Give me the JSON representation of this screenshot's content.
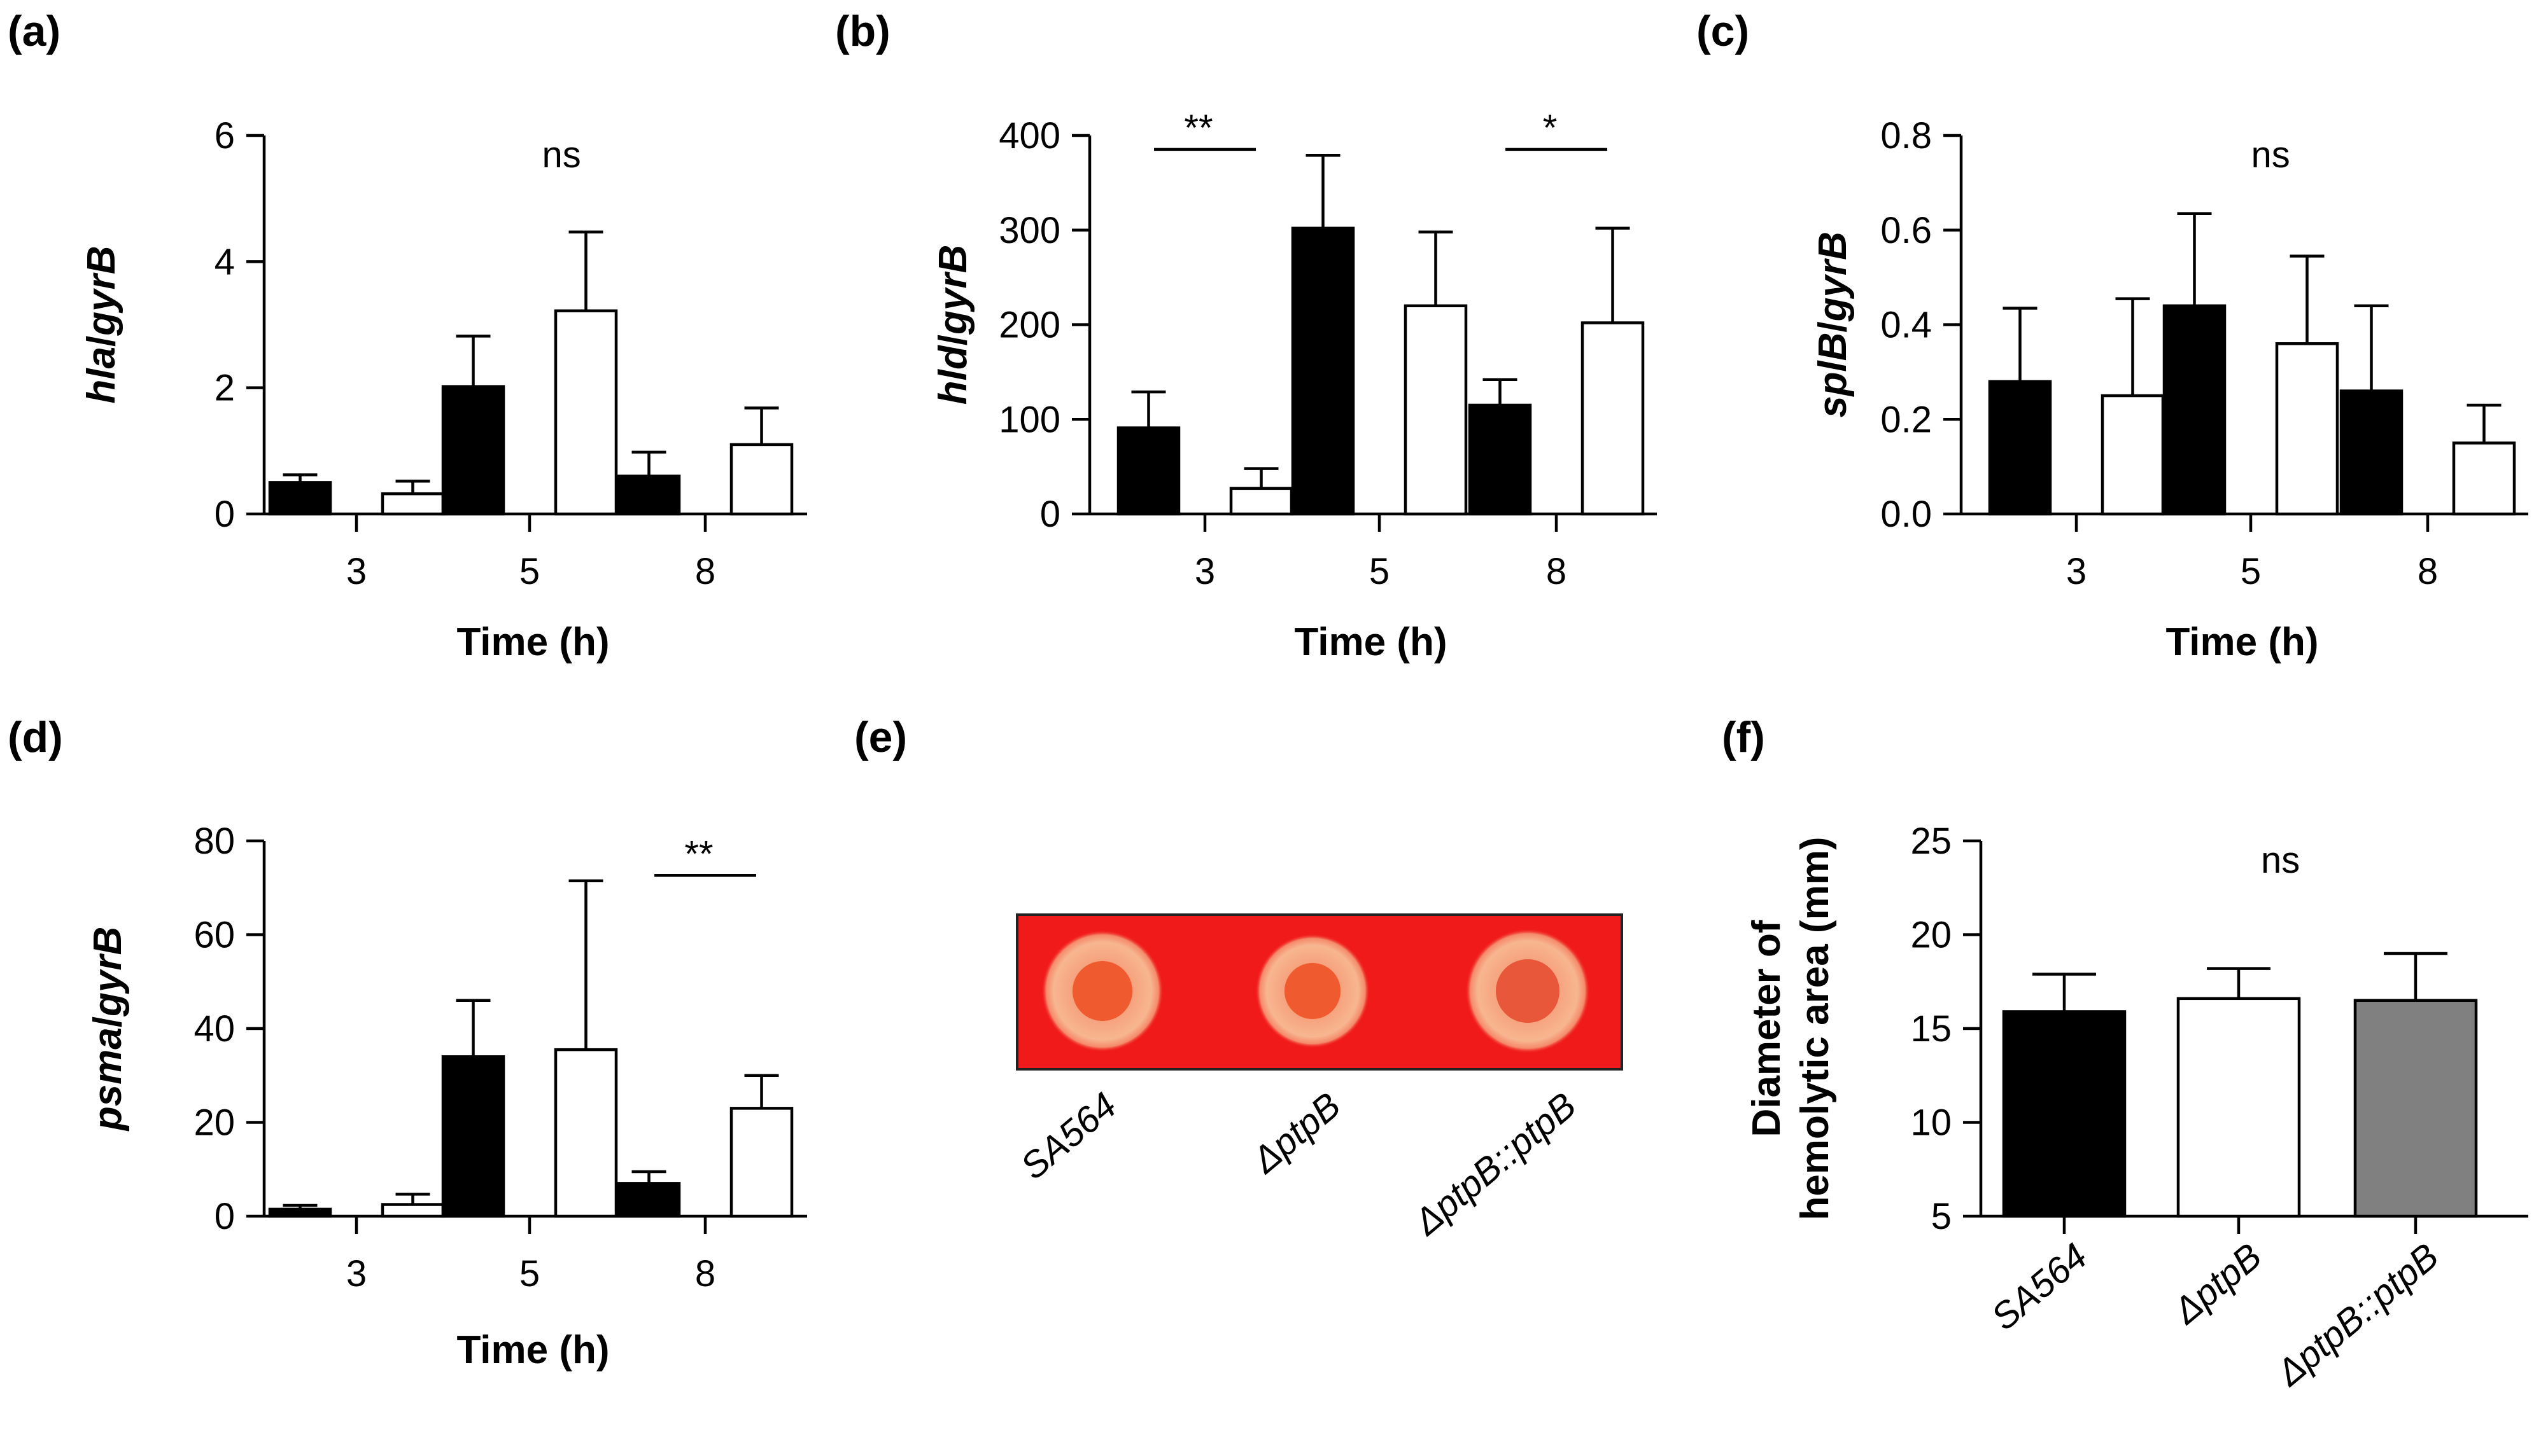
{
  "panel_labels": [
    "(a)",
    "(b)",
    "(c)",
    "(d)",
    "(e)",
    "(f)"
  ],
  "plate": {
    "labels": [
      "SA564",
      "ΔptpB",
      "ΔptpB::ptpB"
    ],
    "background_color": "#f01a1a",
    "halo_color": "#f7b48f",
    "center_color": "#f0582e"
  },
  "colors": {
    "black": "#000000",
    "white": "#ffffff",
    "gray": "#808080"
  },
  "chart_data": [
    {
      "id": "a",
      "type": "bar",
      "ylabel_parts": [
        "hla",
        "/",
        "gyrB"
      ],
      "xlabel": "Time (h)",
      "categories": [
        "3",
        "5",
        "8"
      ],
      "ylim": [
        0,
        6
      ],
      "yticks": [
        "0",
        "2",
        "4",
        "6"
      ],
      "series": [
        {
          "name": "SA564",
          "fill": "black",
          "values": [
            0.5,
            2.02,
            0.6
          ],
          "errors": [
            0.12,
            0.8,
            0.38
          ]
        },
        {
          "name": "ΔptpB",
          "fill": "white",
          "values": [
            0.32,
            3.22,
            1.1
          ],
          "errors": [
            0.2,
            1.25,
            0.58
          ]
        }
      ],
      "annotations": [
        {
          "text": "ns",
          "type": "ns"
        }
      ]
    },
    {
      "id": "b",
      "type": "bar",
      "ylabel_parts": [
        "hld",
        "/",
        "gyrB"
      ],
      "xlabel": "Time (h)",
      "categories": [
        "3",
        "5",
        "8"
      ],
      "ylim": [
        0,
        400
      ],
      "yticks": [
        "0",
        "100",
        "200",
        "300",
        "400"
      ],
      "series": [
        {
          "name": "SA564",
          "fill": "black",
          "values": [
            91,
            302,
            115
          ],
          "errors": [
            38,
            77,
            27
          ]
        },
        {
          "name": "ΔptpB",
          "fill": "white",
          "values": [
            27,
            220,
            202
          ],
          "errors": [
            21,
            78,
            100
          ]
        }
      ],
      "annotations": [
        {
          "text": "**",
          "type": "bracket",
          "category": 0,
          "y": 392
        },
        {
          "text": "*",
          "type": "bracket",
          "category": 2,
          "y": 392
        }
      ]
    },
    {
      "id": "c",
      "type": "bar",
      "ylabel_parts": [
        "splB",
        "/",
        "gyrB"
      ],
      "xlabel": "Time (h)",
      "categories": [
        "3",
        "5",
        "8"
      ],
      "ylim": [
        0,
        0.8
      ],
      "yticks": [
        "0.0",
        "0.2",
        "0.4",
        "0.6",
        "0.8"
      ],
      "series": [
        {
          "name": "SA564",
          "fill": "black",
          "values": [
            0.28,
            0.44,
            0.26
          ],
          "errors": [
            0.155,
            0.195,
            0.18
          ]
        },
        {
          "name": "ΔptpB",
          "fill": "white",
          "values": [
            0.25,
            0.36,
            0.15
          ],
          "errors": [
            0.205,
            0.185,
            0.08
          ]
        }
      ],
      "annotations": [
        {
          "text": "ns",
          "type": "ns"
        }
      ]
    },
    {
      "id": "d",
      "type": "bar",
      "ylabel_parts": [
        "psma",
        "/",
        "gyrB"
      ],
      "xlabel": "Time (h)",
      "categories": [
        "3",
        "5",
        "8"
      ],
      "ylim": [
        0,
        80
      ],
      "yticks": [
        "0",
        "20",
        "40",
        "60",
        "80"
      ],
      "series": [
        {
          "name": "SA564",
          "fill": "black",
          "values": [
            1.5,
            34,
            7
          ],
          "errors": [
            0.8,
            12,
            2.5
          ]
        },
        {
          "name": "ΔptpB",
          "fill": "white",
          "values": [
            2.5,
            35.5,
            23
          ],
          "errors": [
            2.2,
            36,
            7
          ]
        }
      ],
      "annotations": [
        {
          "text": "**",
          "type": "bracket",
          "category": 2,
          "y": 74
        }
      ]
    },
    {
      "id": "f",
      "type": "bar",
      "ylabel_lines": [
        "Diameter of",
        "hemolytic area (mm)"
      ],
      "categories": [
        "SA564",
        "ΔptpB",
        "ΔptpB::ptpB"
      ],
      "ylim": [
        5,
        25
      ],
      "yticks": [
        "5",
        "10",
        "15",
        "20",
        "25"
      ],
      "bars": [
        {
          "name": "SA564",
          "fill": "black",
          "value": 15.9,
          "error": 2
        },
        {
          "name": "ΔptpB",
          "fill": "white",
          "value": 16.6,
          "error": 1.6
        },
        {
          "name": "ΔptpB::ptpB",
          "fill": "gray",
          "value": 16.5,
          "error": 2.5
        }
      ],
      "annotations": [
        {
          "text": "ns",
          "type": "ns"
        }
      ]
    }
  ]
}
